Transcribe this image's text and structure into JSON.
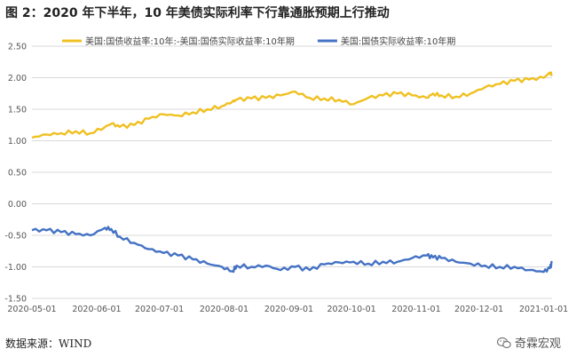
{
  "title": "图 2：2020 年下半年，10 年美债实际利率下行靠通胀预期上行推动",
  "source": "数据来源：WIND",
  "watermark": "奇霖宏观",
  "watermark_icon": "wechat-icon",
  "chart_data": {
    "type": "line",
    "title": "",
    "xlabel": "",
    "ylabel": "",
    "ylim": [
      -1.5,
      2.5
    ],
    "yticks": [
      2.5,
      2.0,
      1.5,
      1.0,
      0.5,
      0.0,
      -0.5,
      -1.0,
      -1.5
    ],
    "ytick_labels": [
      "2.50",
      "2.00",
      "1.50",
      "1.00",
      "0.50",
      "0.00",
      "-0.50",
      "-1.00",
      "-1.50"
    ],
    "xlim": [
      "2020-05-01",
      "2021-01-05"
    ],
    "xtick_labels": [
      "2020-05-01",
      "2020-06-01",
      "2020-07-01",
      "2020-08-01",
      "2020-09-01",
      "2020-10-01",
      "2020-11-01",
      "2020-12-01",
      "2021-01-01"
    ],
    "grid": "horizontal",
    "legend_position": "top",
    "x": [
      "2020-05-01",
      "2020-05-08",
      "2020-05-15",
      "2020-05-22",
      "2020-05-29",
      "2020-06-05",
      "2020-06-08",
      "2020-06-12",
      "2020-06-19",
      "2020-06-26",
      "2020-07-03",
      "2020-07-10",
      "2020-07-17",
      "2020-07-24",
      "2020-07-31",
      "2020-08-05",
      "2020-08-07",
      "2020-08-14",
      "2020-08-21",
      "2020-08-28",
      "2020-09-04",
      "2020-09-11",
      "2020-09-18",
      "2020-09-25",
      "2020-10-02",
      "2020-10-09",
      "2020-10-16",
      "2020-10-23",
      "2020-10-30",
      "2020-11-06",
      "2020-11-09",
      "2020-11-13",
      "2020-11-20",
      "2020-11-27",
      "2020-12-04",
      "2020-12-11",
      "2020-12-18",
      "2020-12-25",
      "2021-01-01",
      "2021-01-04",
      "2021-01-05"
    ],
    "series": [
      {
        "name": "美国:国债收益率:10年:-美国:国债实际收益率:10年期",
        "color": "#F0C020",
        "values": [
          1.05,
          1.1,
          1.12,
          1.15,
          1.12,
          1.22,
          1.27,
          1.22,
          1.25,
          1.35,
          1.42,
          1.4,
          1.45,
          1.5,
          1.55,
          1.62,
          1.65,
          1.67,
          1.68,
          1.72,
          1.78,
          1.68,
          1.67,
          1.65,
          1.58,
          1.68,
          1.72,
          1.75,
          1.72,
          1.68,
          1.75,
          1.72,
          1.7,
          1.75,
          1.85,
          1.9,
          1.95,
          1.97,
          2.0,
          2.08,
          2.05
        ]
      },
      {
        "name": "美国:国债实际收益率:10年期",
        "color": "#4472C4",
        "values": [
          -0.42,
          -0.42,
          -0.45,
          -0.48,
          -0.5,
          -0.38,
          -0.4,
          -0.52,
          -0.62,
          -0.72,
          -0.78,
          -0.82,
          -0.88,
          -0.95,
          -1.0,
          -1.07,
          -0.98,
          -1.0,
          -0.98,
          -1.05,
          -1.0,
          -1.05,
          -0.96,
          -0.93,
          -0.92,
          -0.95,
          -0.92,
          -0.92,
          -0.86,
          -0.82,
          -0.85,
          -0.86,
          -0.92,
          -0.95,
          -0.98,
          -1.0,
          -1.0,
          -1.05,
          -1.08,
          -1.02,
          -0.93
        ]
      }
    ]
  }
}
